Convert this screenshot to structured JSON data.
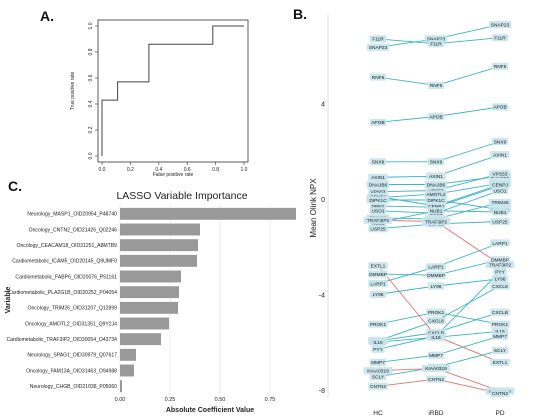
{
  "panels": {
    "a": "A.",
    "b": "B.",
    "c": "C."
  },
  "colors": {
    "teal": "#3bb5c7",
    "red": "#e8726e",
    "bar": "#999999",
    "roc": "#444444",
    "box": "#c7e4ec"
  },
  "chart_data": [
    {
      "type": "line",
      "xlabel": "False positive rate",
      "ylabel": "True positive rate",
      "xlim": [
        0,
        1
      ],
      "ylim": [
        0,
        1
      ],
      "xticks": [
        "0.0",
        "0.2",
        "0.4",
        "0.6",
        "0.8",
        "1.0"
      ],
      "yticks": [
        "0.0",
        "0.2",
        "0.4",
        "0.6",
        "0.8",
        "1.0"
      ],
      "points": [
        [
          0,
          0
        ],
        [
          0,
          0.43
        ],
        [
          0.11,
          0.43
        ],
        [
          0.11,
          0.57
        ],
        [
          0.33,
          0.57
        ],
        [
          0.33,
          0.86
        ],
        [
          0.78,
          0.86
        ],
        [
          0.78,
          1.0
        ],
        [
          1.0,
          1.0
        ]
      ]
    },
    {
      "type": "line",
      "ylabel": "Mean Olink NPX",
      "categories": [
        "HC",
        "iRBD",
        "PD"
      ],
      "yticks": [
        "4",
        "0",
        "-4",
        "-8"
      ],
      "ylim": [
        -8.3,
        7.7
      ],
      "series": [
        {
          "name": "SNAP23",
          "color": "teal",
          "values": [
            6.35,
            6.7,
            7.3
          ]
        },
        {
          "name": "F11R",
          "color": "teal",
          "values": [
            6.7,
            6.5,
            6.75
          ]
        },
        {
          "name": "RNF5",
          "color": "teal",
          "values": [
            5.1,
            4.75,
            5.55
          ]
        },
        {
          "name": "APOB",
          "color": "teal",
          "values": [
            3.2,
            3.45,
            3.85
          ]
        },
        {
          "name": "SNX9",
          "color": "teal",
          "values": [
            1.55,
            1.55,
            2.4
          ]
        },
        {
          "name": "AXIN1",
          "color": "teal",
          "values": [
            0.9,
            0.95,
            1.85
          ]
        },
        {
          "name": "DNAJB6",
          "color": "teal",
          "values": [
            0.6,
            0.6,
            0.95
          ]
        },
        {
          "name": "VPS53",
          "color": "teal",
          "values": [
            0.3,
            0.35,
            1.05
          ]
        },
        {
          "name": "DBN1",
          "color": "teal",
          "values": [
            -0.3,
            -0.35,
            0.55
          ]
        },
        {
          "name": "AMOTL2",
          "color": "teal",
          "values": [
            0.05,
            0.2,
            0.65
          ]
        },
        {
          "name": "CENPJ",
          "color": "teal",
          "values": [
            0.1,
            -0.3,
            0.6
          ]
        },
        {
          "name": "DIPK1C",
          "color": "teal",
          "values": [
            -0.05,
            -0.05,
            -0.45
          ]
        },
        {
          "name": "TRIM26",
          "color": "teal",
          "values": [
            -0.8,
            -0.85,
            -0.15
          ]
        },
        {
          "name": "USO1",
          "color": "teal",
          "values": [
            -0.5,
            -0.6,
            0.35
          ]
        },
        {
          "name": "NUB1",
          "color": "teal",
          "values": [
            -1.0,
            -0.5,
            -0.55
          ]
        },
        {
          "name": "USP25",
          "color": "teal",
          "values": [
            -1.25,
            -1.05,
            -0.95
          ]
        },
        {
          "name": "TRAF3IP2",
          "color": "red",
          "values": [
            -0.9,
            -0.95,
            -2.75
          ]
        },
        {
          "name": "LARP1",
          "color": "teal",
          "values": [
            -3.55,
            -2.85,
            -1.85
          ]
        },
        {
          "name": "DMMBP",
          "color": "teal",
          "values": [
            -3.15,
            -3.2,
            -2.55
          ]
        },
        {
          "name": "EXTL1",
          "color": "red",
          "values": [
            -2.8,
            -5.75,
            -6.85
          ]
        },
        {
          "name": "LY96",
          "color": "teal",
          "values": [
            -4.0,
            -3.65,
            -3.35
          ]
        },
        {
          "name": "PYY",
          "color": "teal",
          "values": [
            -6.3,
            -5.75,
            -3.05
          ]
        },
        {
          "name": "PROK1",
          "color": "teal",
          "values": [
            -5.25,
            -4.75,
            -5.25
          ]
        },
        {
          "name": "CXCL8",
          "color": "teal",
          "values": [
            -5.95,
            -5.1,
            -3.65
          ]
        },
        {
          "name": "CXCLB",
          "color": "teal",
          "values": [
            -5.95,
            -5.6,
            -4.75
          ]
        },
        {
          "name": "IL16",
          "color": "teal",
          "values": [
            -6.0,
            -5.8,
            -5.55
          ]
        },
        {
          "name": "MMP7",
          "color": "teal",
          "values": [
            -6.85,
            -6.55,
            -5.75
          ]
        },
        {
          "name": "SCLY",
          "color": "teal",
          "values": [
            -7.45,
            -7.05,
            -6.35
          ]
        },
        {
          "name": "KIAA0319",
          "color": "red",
          "values": [
            -7.2,
            -7.1,
            -8.05
          ]
        },
        {
          "name": "CNTN2",
          "color": "red",
          "values": [
            -7.85,
            -7.55,
            -8.15
          ]
        }
      ]
    },
    {
      "type": "bar",
      "title": "LASSO Variable Importance",
      "xlabel": "Absolute Coefficient Value",
      "ylabel": "Variable",
      "xlim": [
        0,
        0.9
      ],
      "xticks": [
        0,
        0.25,
        0.5,
        0.75
      ],
      "tick_labels": [
        "0.00",
        "0.25",
        "0.50",
        "0.75"
      ],
      "categories": [
        "Neurology_MASP1_OID20954_P48740",
        "Oncology_CNTN2_OID21426_Q02246",
        "Oncology_CEACAM18_OID31251_A8MTB9",
        "Cardiometabolic_ICAM5_OID20145_Q9UMF0",
        "Cardiometabolic_FABP6_OID20076_P51161",
        "Cardiometabolic_PLA2G1B_OID20252_P04054",
        "Oncology_TRIM26_OID31207_Q12899",
        "Oncology_AMOTL2_OID31351_Q9Y2J4",
        "Cardiometabolic_TRAF3IP2_OID30054_O43734",
        "Neurology_SPAG1_OID30979_Q07617",
        "Oncology_FAM13A_OID31463_O94988",
        "Neurology_CHGB_OID21038_P05060"
      ],
      "values": [
        0.88,
        0.4,
        0.39,
        0.385,
        0.305,
        0.295,
        0.29,
        0.245,
        0.205,
        0.08,
        0.07,
        0.01
      ]
    }
  ]
}
